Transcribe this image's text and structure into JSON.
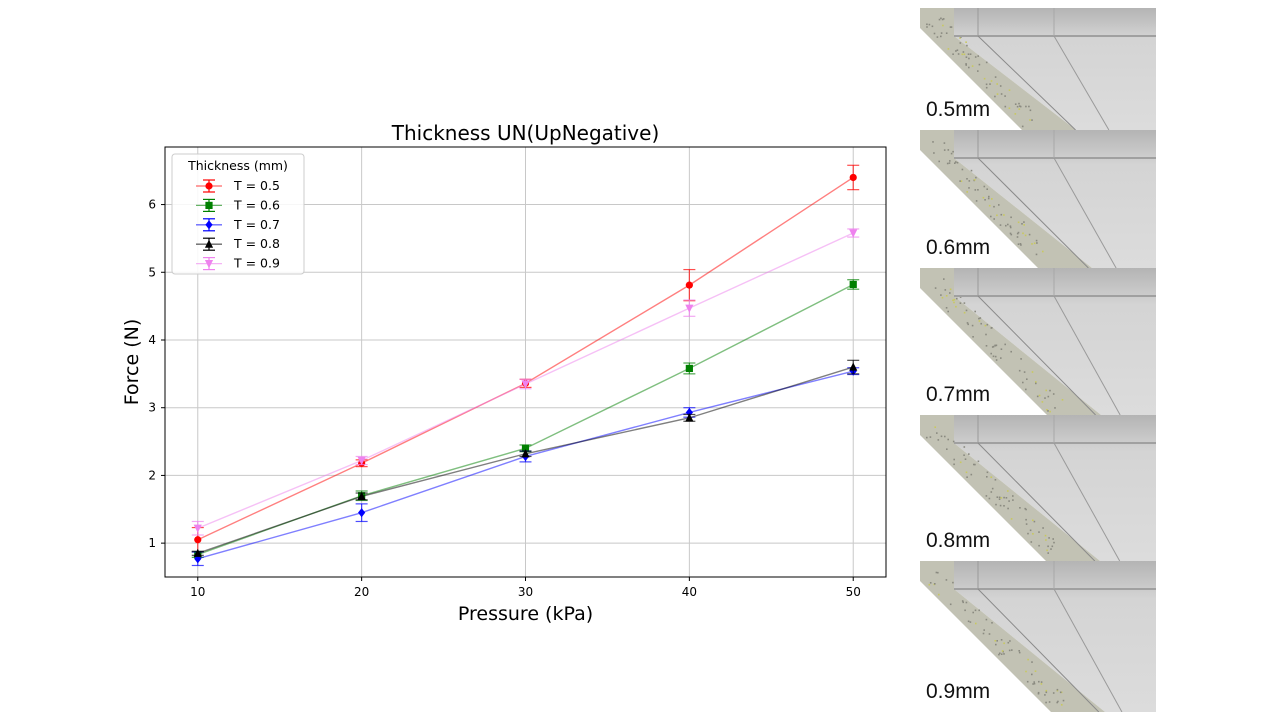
{
  "chart_data": {
    "type": "line",
    "title": "Thickness UN(UpNegative)",
    "xlabel": "Pressure (kPa)",
    "ylabel": "Force (N)",
    "xlim": [
      8,
      52
    ],
    "ylim": [
      0.5,
      6.85
    ],
    "xticks": [
      10,
      20,
      30,
      40,
      50
    ],
    "yticks": [
      1,
      2,
      3,
      4,
      5,
      6
    ],
    "grid": true,
    "legend": {
      "title": "Thickness (mm)",
      "placement": "top-left"
    },
    "x": [
      10,
      20,
      30,
      40,
      50
    ],
    "series": [
      {
        "name": "T = 0.5",
        "color": "#ff0000",
        "marker": "circle",
        "values": [
          1.05,
          2.18,
          3.36,
          4.81,
          6.4
        ],
        "errors": [
          0.18,
          0.05,
          0.06,
          0.23,
          0.18
        ]
      },
      {
        "name": "T = 0.6",
        "color": "#008000",
        "marker": "square",
        "values": [
          0.83,
          1.7,
          2.4,
          3.58,
          4.82
        ],
        "errors": [
          0.04,
          0.07,
          0.05,
          0.08,
          0.07
        ]
      },
      {
        "name": "T = 0.7",
        "color": "#0000ff",
        "marker": "diamond",
        "values": [
          0.77,
          1.45,
          2.28,
          2.93,
          3.54
        ],
        "errors": [
          0.1,
          0.13,
          0.08,
          0.07,
          0.05
        ]
      },
      {
        "name": "T = 0.8",
        "color": "#000000",
        "marker": "triangle-up",
        "values": [
          0.85,
          1.69,
          2.32,
          2.85,
          3.6
        ],
        "errors": [
          0.03,
          0.05,
          0.04,
          0.05,
          0.1
        ]
      },
      {
        "name": "T = 0.9",
        "color": "#ee82ee",
        "marker": "triangle-down",
        "values": [
          1.22,
          2.22,
          3.35,
          4.47,
          5.58
        ],
        "errors": [
          0.1,
          0.06,
          0.07,
          0.12,
          0.06
        ]
      }
    ]
  },
  "panels": [
    {
      "label": "0.5mm"
    },
    {
      "label": "0.6mm"
    },
    {
      "label": "0.7mm"
    },
    {
      "label": "0.8mm"
    },
    {
      "label": "0.9mm"
    }
  ]
}
